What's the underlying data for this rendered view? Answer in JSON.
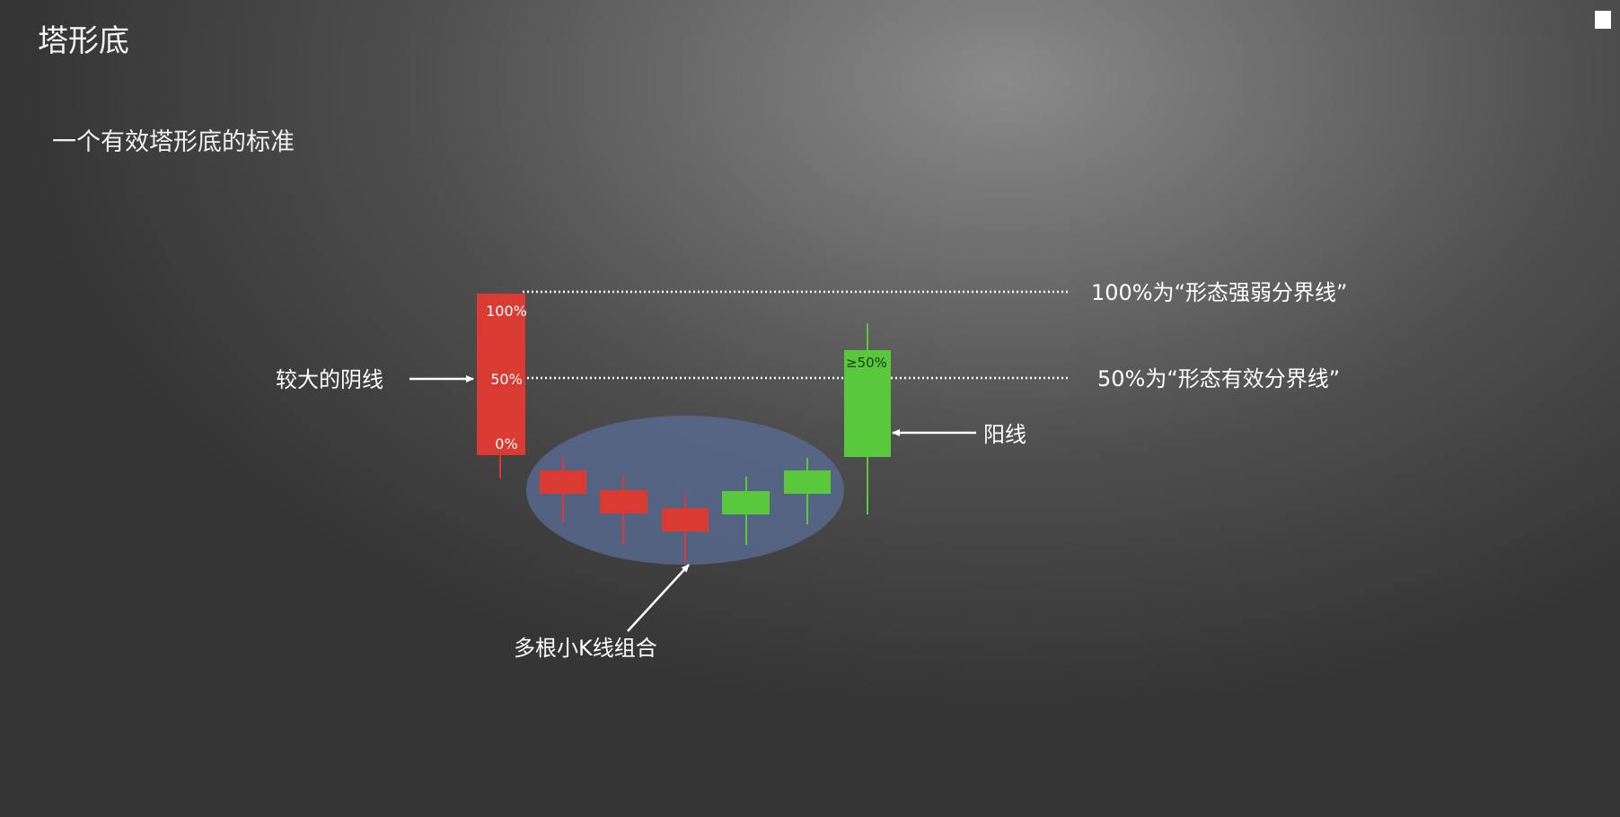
{
  "title": "塔形底",
  "subtitle": "一个有效塔形底的标准",
  "labels": {
    "big_bear": "较大的阴线",
    "bull": "阳线",
    "small_group": "多根小K线组合",
    "line_100": "100%为“形态强弱分界线”",
    "line_50": "50%为“形态有效分界线”",
    "pct_100": "100%",
    "pct_50": "50%",
    "pct_0": "0%",
    "pct_ge50": "≥50%"
  },
  "colors": {
    "bear": "#d93a32",
    "bull": "#5ac83d",
    "ellipse": "#5a6e96",
    "dotted_line": "#ffffff"
  }
}
